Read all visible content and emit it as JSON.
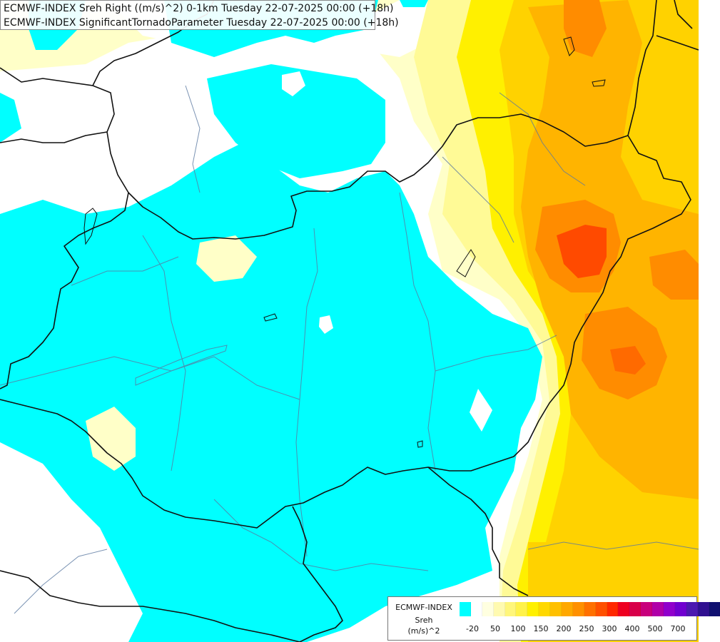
{
  "header": {
    "line1": "ECMWF-INDEX Sreh Right ((m/s)^2) 0-1km Tuesday 22-07-2025 00:00 (+18h)",
    "line2": "ECMWF-INDEX SignificantTornadoParameter Tuesday 22-07-2025 00:00 (+18h)"
  },
  "legend": {
    "line1": "ECMWF-INDEX",
    "line2": "Sreh",
    "line3": "(m/s)^2",
    "colors": [
      "#00ffff",
      "#ffffff",
      "#ffffe0",
      "#fffab0",
      "#fff67a",
      "#fff24a",
      "#fff000",
      "#ffd800",
      "#ffc000",
      "#ffa800",
      "#ff9000",
      "#ff7000",
      "#ff5000",
      "#ff2800",
      "#ee0020",
      "#d8004a",
      "#c8007c",
      "#b000a8",
      "#9000cc",
      "#7000d0",
      "#4c18b0",
      "#301090",
      "#101070"
    ],
    "ticks": [
      "-20",
      "50",
      "100",
      "150",
      "200",
      "250",
      "300",
      "400",
      "500",
      "700"
    ]
  },
  "map": {
    "colors": {
      "cyan": "#00ffff",
      "white": "#ffffff",
      "paleYellow": "#ffffc8",
      "lightYellow": "#fffa96",
      "yellow": "#fff000",
      "gold": "#ffd200",
      "orange": "#ffb400",
      "darkOrange": "#ff8c00",
      "red": "#ff4a00",
      "border": "#111111",
      "river": "#5a78a0"
    }
  }
}
